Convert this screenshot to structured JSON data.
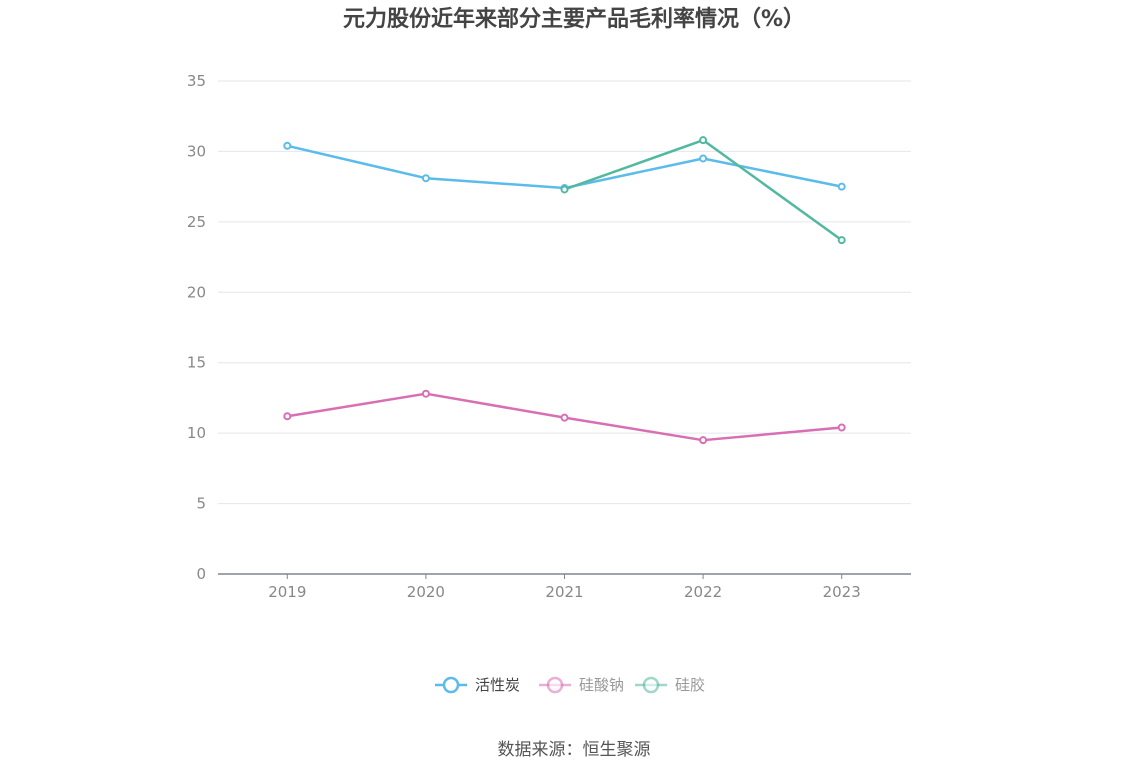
{
  "chart_data": {
    "type": "line",
    "title": "元力股份近年来部分主要产品毛利率情况（%）",
    "xlabel": "",
    "ylabel": "",
    "categories": [
      "2019",
      "2020",
      "2021",
      "2022",
      "2023"
    ],
    "ylim": [
      0,
      35
    ],
    "yticks": [
      0,
      5,
      10,
      15,
      20,
      25,
      30,
      35
    ],
    "grid": true,
    "legend_position": "bottom",
    "series": [
      {
        "name": "活性炭",
        "color": "#5bbbea",
        "values": [
          30.4,
          28.1,
          27.4,
          29.5,
          27.5
        ]
      },
      {
        "name": "硅酸钠",
        "color": "#d86fb4",
        "values": [
          11.2,
          12.8,
          11.1,
          9.5,
          10.4
        ]
      },
      {
        "name": "硅胶",
        "color": "#52b8a0",
        "values": [
          null,
          null,
          27.3,
          30.8,
          23.7
        ]
      }
    ],
    "legend_text_colors": [
      "#444444",
      "#999999",
      "#999999"
    ],
    "source": "数据来源：恒生聚源"
  }
}
